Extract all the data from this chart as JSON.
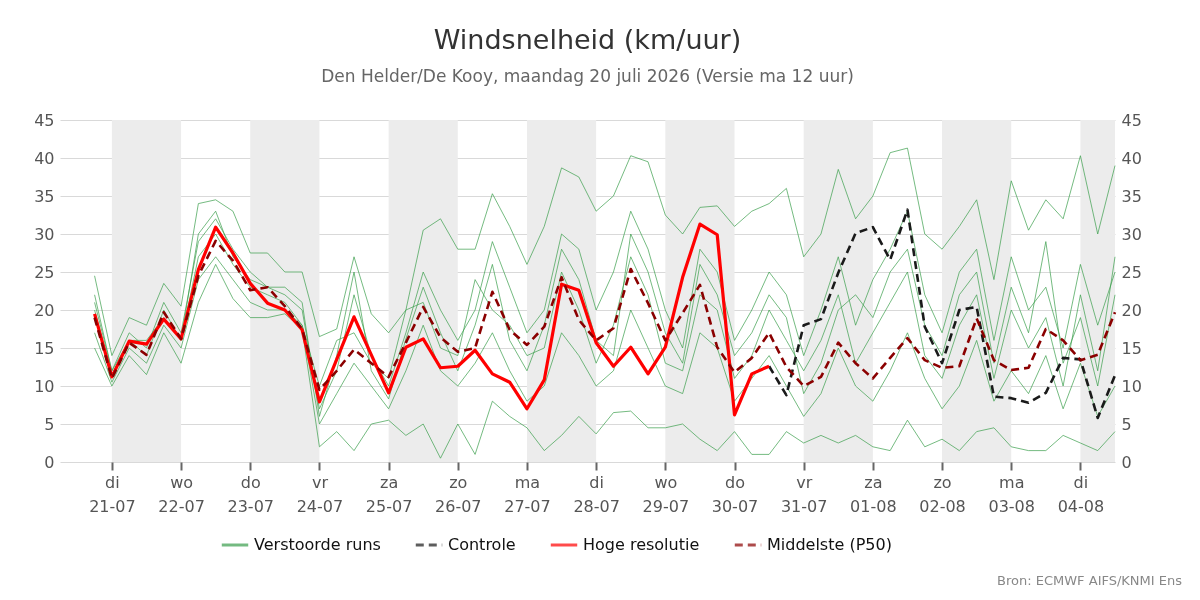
{
  "chart_data": {
    "type": "line",
    "title": "Windsnelheid (km/uur)",
    "subtitle": "Den Helder/De Kooy, maandag 20 juli 2026 (Versie ma 12 uur)",
    "annotations": [
      "Bron: ECMWF AIFS/KNMI Ens"
    ],
    "x": [
      "2026-07-20T18:00",
      "2026-07-21T00:00",
      "2026-07-21T06:00",
      "2026-07-21T12:00",
      "2026-07-21T18:00",
      "2026-07-22T00:00",
      "2026-07-22T06:00",
      "2026-07-22T12:00",
      "2026-07-22T18:00",
      "2026-07-23T00:00",
      "2026-07-23T06:00",
      "2026-07-23T12:00",
      "2026-07-23T18:00",
      "2026-07-24T00:00",
      "2026-07-24T06:00",
      "2026-07-24T12:00",
      "2026-07-24T18:00",
      "2026-07-25T00:00",
      "2026-07-25T06:00",
      "2026-07-25T12:00",
      "2026-07-25T18:00",
      "2026-07-26T00:00",
      "2026-07-26T06:00",
      "2026-07-26T12:00",
      "2026-07-26T18:00",
      "2026-07-27T00:00",
      "2026-07-27T06:00",
      "2026-07-27T12:00",
      "2026-07-27T18:00",
      "2026-07-28T00:00",
      "2026-07-28T06:00",
      "2026-07-28T12:00",
      "2026-07-28T18:00",
      "2026-07-29T00:00",
      "2026-07-29T06:00",
      "2026-07-29T12:00",
      "2026-07-29T18:00",
      "2026-07-30T00:00",
      "2026-07-30T06:00",
      "2026-07-30T12:00",
      "2026-07-30T18:00",
      "2026-07-31T00:00",
      "2026-07-31T06:00",
      "2026-07-31T12:00",
      "2026-07-31T18:00",
      "2026-08-01T00:00",
      "2026-08-01T06:00",
      "2026-08-01T12:00",
      "2026-08-01T18:00",
      "2026-08-02T00:00",
      "2026-08-02T06:00",
      "2026-08-02T12:00",
      "2026-08-02T18:00",
      "2026-08-03T00:00",
      "2026-08-03T06:00",
      "2026-08-03T12:00",
      "2026-08-03T18:00",
      "2026-08-04T00:00",
      "2026-08-04T06:00",
      "2026-08-04T12:00"
    ],
    "xlim": [
      "2026-07-20T06:00",
      "2026-08-04T12:00"
    ],
    "xticks": [
      {
        "value": "2026-07-21",
        "label": "di\n21-07"
      },
      {
        "value": "2026-07-22",
        "label": "wo\n22-07"
      },
      {
        "value": "2026-07-23",
        "label": "do\n23-07"
      },
      {
        "value": "2026-07-24",
        "label": "vr\n24-07"
      },
      {
        "value": "2026-07-25",
        "label": "za\n25-07"
      },
      {
        "value": "2026-07-26",
        "label": "zo\n26-07"
      },
      {
        "value": "2026-07-27",
        "label": "ma\n27-07"
      },
      {
        "value": "2026-07-28",
        "label": "di\n28-07"
      },
      {
        "value": "2026-07-29",
        "label": "wo\n29-07"
      },
      {
        "value": "2026-07-30",
        "label": "do\n30-07"
      },
      {
        "value": "2026-07-31",
        "label": "vr\n31-07"
      },
      {
        "value": "2026-08-01",
        "label": "za\n01-08"
      },
      {
        "value": "2026-08-02",
        "label": "zo\n02-08"
      },
      {
        "value": "2026-08-03",
        "label": "ma\n03-08"
      },
      {
        "value": "2026-08-04",
        "label": "di\n04-08"
      }
    ],
    "ylim": [
      0,
      45
    ],
    "yticks": [
      0,
      5,
      10,
      15,
      20,
      25,
      30,
      35,
      40,
      45
    ],
    "y2lim": [
      0,
      45
    ],
    "y2ticks": [
      0,
      5,
      10,
      15,
      20,
      25,
      30,
      35,
      40,
      45
    ],
    "grid": "y",
    "legend": "bottom",
    "bands": [
      {
        "axis": "x",
        "from": "2026-07-21",
        "to": "2026-07-22",
        "color": "#ececec"
      },
      {
        "axis": "x",
        "from": "2026-07-23",
        "to": "2026-07-24",
        "color": "#ececec"
      },
      {
        "axis": "x",
        "from": "2026-07-25",
        "to": "2026-07-26",
        "color": "#ececec"
      },
      {
        "axis": "x",
        "from": "2026-07-27",
        "to": "2026-07-28",
        "color": "#ececec"
      },
      {
        "axis": "x",
        "from": "2026-07-29",
        "to": "2026-07-30",
        "color": "#ececec"
      },
      {
        "axis": "x",
        "from": "2026-07-31",
        "to": "2026-08-01",
        "color": "#ececec"
      },
      {
        "axis": "x",
        "from": "2026-08-02",
        "to": "2026-08-03",
        "color": "#ececec"
      },
      {
        "axis": "x",
        "from": "2026-08-04",
        "to": "2026-08-04T12:00",
        "color": "#ececec"
      }
    ],
    "series": [
      {
        "name": "Verstoorde runs",
        "color": "#3a9e4c",
        "line_style": "solid",
        "values": [
          24.5,
          14,
          19,
          18,
          23.5,
          20.5,
          34,
          34.5,
          33,
          27.5,
          27.5,
          25,
          25,
          16.5,
          17.5,
          27,
          19.5,
          17,
          20,
          30.5,
          32,
          28,
          28,
          35.3,
          31,
          26,
          31,
          38.7,
          37.5,
          33,
          35,
          40.3,
          39.5,
          32.5,
          30,
          33.5,
          33.7,
          31,
          33,
          34,
          36,
          27,
          30,
          38.5,
          32,
          35,
          40.7,
          41.3,
          30,
          28,
          31,
          34.5,
          24,
          37,
          30.5,
          34.5,
          32,
          40.3,
          30,
          39
        ]
      },
      {
        "color": "#3a9e4c",
        "line_style": "solid",
        "values": [
          15,
          10,
          14,
          11.5,
          17,
          13,
          21,
          26,
          21.5,
          19,
          19,
          19.5,
          17.5,
          2,
          4,
          1.5,
          5,
          5.5,
          3.5,
          5,
          0.5,
          5,
          1,
          8,
          6,
          4.5,
          1.5,
          3.5,
          6,
          3.7,
          6.5,
          6.7,
          4.5,
          4.5,
          5,
          3,
          1.5,
          4,
          1,
          1,
          4,
          2.5,
          3.5,
          2.5,
          3.5,
          2,
          1.5,
          5.5,
          2,
          3,
          1.5,
          4,
          4.5,
          2,
          1.5,
          1.5,
          3.5,
          2.5,
          1.5,
          4
        ]
      },
      {
        "color": "#3a9e4c",
        "line_style": "solid",
        "values": [
          21,
          12,
          17,
          15,
          21,
          17,
          29,
          32,
          28,
          25,
          23,
          22,
          20,
          7,
          12,
          22,
          14,
          10,
          17,
          25,
          20,
          16,
          20,
          29,
          23,
          17,
          20,
          30,
          28,
          20,
          25,
          33,
          28,
          20,
          15,
          28,
          25,
          16,
          20,
          25,
          22,
          14,
          20,
          27,
          18,
          24,
          28,
          33,
          22,
          17,
          25,
          28,
          16,
          27,
          20,
          23,
          15,
          26,
          18,
          25
        ]
      },
      {
        "color": "#3a9e4c",
        "line_style": "solid",
        "values": [
          17,
          10.5,
          15,
          13,
          18,
          15,
          24,
          27,
          24,
          21,
          20,
          20,
          18,
          5,
          9,
          13,
          10,
          7,
          12,
          18,
          12,
          10,
          13,
          17,
          12,
          8,
          10,
          17,
          14,
          10,
          12,
          20,
          15,
          10,
          9,
          17,
          15,
          8,
          11,
          14,
          10,
          6,
          9,
          15,
          10,
          8,
          12,
          17,
          11,
          7,
          10,
          16,
          8,
          12,
          9,
          14,
          7,
          13,
          6,
          10
        ]
      },
      {
        "color": "#3a9e4c",
        "line_style": "solid",
        "values": [
          20,
          11.5,
          16,
          16,
          19,
          16,
          27,
          30,
          26,
          23,
          22,
          21,
          18,
          10,
          16,
          17,
          13,
          11,
          20,
          21,
          15,
          14,
          24,
          20,
          18,
          14,
          15,
          25,
          20,
          13,
          18,
          27,
          22,
          13,
          12,
          22,
          20,
          11,
          14,
          20,
          16,
          12,
          16,
          22,
          13,
          17,
          21,
          25,
          14,
          11,
          18,
          22,
          11,
          20,
          15,
          19,
          10,
          22,
          12,
          27
        ]
      },
      {
        "color": "#3a9e4c",
        "line_style": "solid",
        "values": [
          22,
          12,
          16,
          14,
          20,
          16,
          30,
          33,
          27,
          24,
          23,
          23,
          21,
          6,
          14,
          25,
          12,
          8.3,
          16.2,
          23,
          17,
          12,
          18,
          26,
          16,
          12,
          18,
          28,
          24,
          16,
          14,
          30,
          25,
          17,
          13,
          26,
          22,
          14,
          17,
          22,
          19,
          9,
          13,
          20,
          22,
          19,
          25,
          28,
          18,
          14,
          22,
          25,
          13,
          23,
          17,
          29,
          13,
          19,
          10,
          22
        ]
      },
      {
        "name": "Controle",
        "color": "#1a1a1a",
        "line_style": "dashed",
        "values": [
          null,
          null,
          null,
          null,
          null,
          null,
          null,
          null,
          null,
          null,
          null,
          null,
          null,
          null,
          null,
          null,
          null,
          null,
          null,
          null,
          null,
          null,
          null,
          null,
          null,
          null,
          null,
          null,
          null,
          null,
          null,
          null,
          null,
          null,
          null,
          null,
          null,
          null,
          null,
          12.6,
          8.8,
          18,
          18.8,
          24.9,
          30.1,
          30.9,
          26.6,
          33.2,
          17.8,
          13,
          20,
          20.4,
          8.6,
          8.4,
          7.8,
          9.1,
          13.7,
          13.5,
          5.8,
          11.4
        ]
      },
      {
        "name": "Hoge resolutie",
        "color": "#ff0000",
        "line_style": "solid",
        "values": [
          19.5,
          11.2,
          15.9,
          15.5,
          18.8,
          16.2,
          25.3,
          30.9,
          27.5,
          23.5,
          20.9,
          20,
          17.4,
          7.9,
          13.5,
          19.1,
          14.1,
          9.1,
          15.1,
          16.2,
          12.4,
          12.6,
          14.7,
          11.6,
          10.5,
          7,
          10.8,
          23.4,
          22.6,
          15.7,
          12.6,
          15.1,
          11.6,
          15.1,
          24.3,
          31.3,
          29.9,
          6.2,
          11.6,
          12.6,
          null,
          null,
          null,
          null,
          null,
          null,
          null,
          null,
          null,
          null,
          null,
          null,
          null,
          null,
          null,
          null,
          null,
          null,
          null,
          null
        ]
      },
      {
        "name": "Middelste (P50)",
        "color": "#8b0000",
        "line_style": "dashed",
        "values": [
          19,
          11,
          15.7,
          14.1,
          19.7,
          16.2,
          24.5,
          29.1,
          26.5,
          22.6,
          23,
          20.5,
          17.5,
          9.5,
          12,
          14.8,
          13,
          11.2,
          15.7,
          20.4,
          16.4,
          14.5,
          15,
          22.4,
          17.4,
          15.4,
          17.8,
          24.3,
          18.7,
          16,
          17.6,
          25.4,
          20.9,
          16,
          19.6,
          23.3,
          15.1,
          11.8,
          13.7,
          17,
          12.5,
          10,
          11.2,
          15.7,
          13,
          11,
          13.7,
          16.3,
          13.4,
          12.4,
          12.6,
          18.9,
          13.4,
          12.1,
          12.4,
          17.5,
          16,
          13.4,
          14.1,
          19.7
        ]
      }
    ]
  }
}
